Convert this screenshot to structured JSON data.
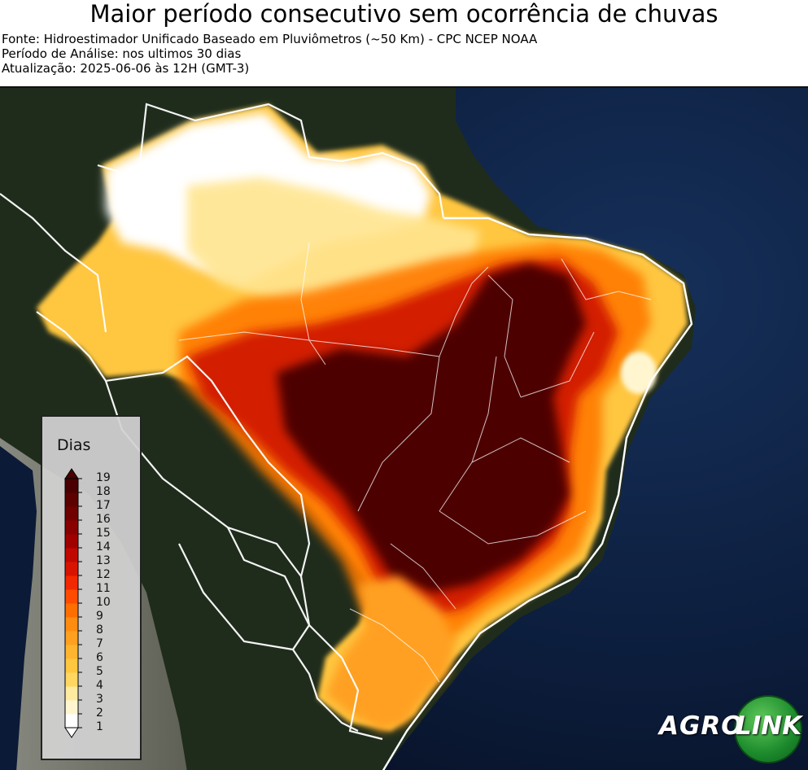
{
  "header": {
    "title": "Maior período consecutivo sem ocorrência de chuvas",
    "source": "Fonte: Hidroestimador Unificado Baseado em Pluviômetros (~50 Km) - CPC NCEP NOAA",
    "period": "Período de Análise: nos ultimos 30 dias",
    "updated": "Atualização: 2025-06-06 às 12H (GMT-3)"
  },
  "legend": {
    "title": "Dias",
    "ticks": [
      "1",
      "2",
      "3",
      "4",
      "5",
      "6",
      "7",
      "8",
      "9",
      "10",
      "11",
      "12",
      "13",
      "14",
      "15",
      "16",
      "17",
      "18",
      "19"
    ],
    "colors": [
      "#ffffff",
      "#fff6d0",
      "#ffeaa0",
      "#ffd760",
      "#ffc640",
      "#ffb430",
      "#ffa020",
      "#ff8c10",
      "#ff6e00",
      "#ff4c00",
      "#f22800",
      "#d81400",
      "#c00800",
      "#a00000",
      "#880000",
      "#700000",
      "#5c0000",
      "#4a0000"
    ]
  },
  "colors": {
    "ocean": "#0c1d3c",
    "land": "#1e2a1a",
    "andes": "#8a8a80",
    "border": "#ffffff"
  },
  "logo": {
    "part1": "AGRO",
    "part2": "LINK"
  }
}
